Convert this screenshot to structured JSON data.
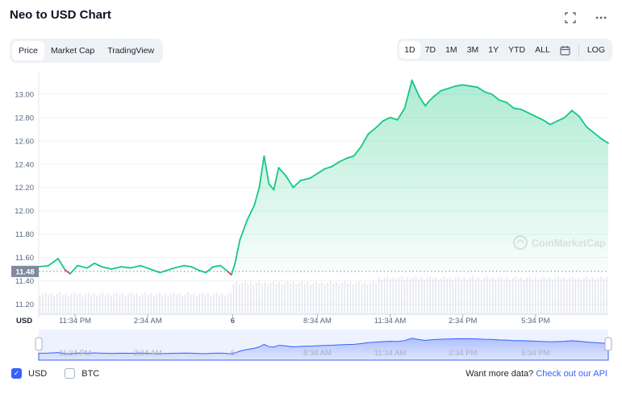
{
  "header": {
    "title": "Neo to USD Chart"
  },
  "type_tabs": [
    {
      "label": "Price",
      "active": true
    },
    {
      "label": "Market Cap",
      "active": false
    },
    {
      "label": "TradingView",
      "active": false
    }
  ],
  "range_tabs": [
    {
      "label": "1D",
      "active": true
    },
    {
      "label": "7D",
      "active": false
    },
    {
      "label": "1M",
      "active": false
    },
    {
      "label": "3M",
      "active": false
    },
    {
      "label": "1Y",
      "active": false
    },
    {
      "label": "YTD",
      "active": false
    },
    {
      "label": "ALL",
      "active": false
    }
  ],
  "log_label": "LOG",
  "watermark": "CoinMarketCap",
  "currency_axis_label": "USD",
  "legend": {
    "usd_label": "USD",
    "btc_label": "BTC"
  },
  "api_note": {
    "text": "Want more data?",
    "link": "Check out our API"
  },
  "colors": {
    "up": "#16c784",
    "down": "#ea3943",
    "navigator": "#3861fb"
  },
  "chart_data": {
    "type": "line",
    "xlabel": "",
    "ylabel": "",
    "ylim": [
      11.12,
      13.2
    ],
    "y_ticks": [
      11.2,
      11.4,
      11.6,
      11.8,
      12.0,
      12.2,
      12.4,
      12.6,
      12.8,
      13.0
    ],
    "y_tick_labels": [
      "11.20",
      "11.40",
      "11.60",
      "11.80",
      "12.00",
      "12.20",
      "12.40",
      "12.60",
      "12.80",
      "13.00"
    ],
    "x_ticks": [
      1.5,
      4.5,
      8,
      11.5,
      14.5,
      17.5,
      20.5
    ],
    "x_tick_labels": [
      "11:34 PM",
      "2:34 AM",
      "6",
      "8:34 AM",
      "11:34 AM",
      "2:34 PM",
      "5:34 PM"
    ],
    "xlim": [
      0,
      23.5
    ],
    "baseline": 11.48,
    "baseline_label": "11.48",
    "series": [
      {
        "x": [
          0,
          0.4,
          0.8,
          1.1,
          1.3,
          1.6,
          2.0,
          2.3,
          2.6,
          3.0,
          3.4,
          3.8,
          4.2,
          4.6,
          5.0,
          5.3,
          5.6,
          6.0,
          6.3,
          6.6,
          6.9,
          7.2,
          7.5,
          7.8,
          7.95,
          8.1,
          8.3,
          8.6,
          8.9,
          9.1,
          9.3,
          9.5,
          9.7,
          9.9,
          10.2,
          10.5,
          10.8,
          11.0,
          11.2,
          11.5,
          11.8,
          12.1,
          12.4,
          12.7,
          13.0,
          13.3,
          13.6,
          13.9,
          14.2,
          14.5,
          14.8,
          15.1,
          15.4,
          15.7,
          15.95,
          16.1,
          16.3,
          16.6,
          16.9,
          17.2,
          17.5,
          17.8,
          18.1,
          18.4,
          18.7,
          19.0,
          19.3,
          19.6,
          19.9,
          20.2,
          20.5,
          20.8,
          21.1,
          21.4,
          21.7,
          22.0,
          22.3,
          22.6,
          22.9,
          23.2,
          23.5
        ],
        "values": [
          11.52,
          11.53,
          11.59,
          11.49,
          11.46,
          11.53,
          11.51,
          11.55,
          11.52,
          11.5,
          11.52,
          11.51,
          11.53,
          11.5,
          11.47,
          11.49,
          11.51,
          11.53,
          11.52,
          11.49,
          11.47,
          11.52,
          11.53,
          11.48,
          11.45,
          11.55,
          11.75,
          11.92,
          12.05,
          12.2,
          12.47,
          12.23,
          12.18,
          12.37,
          12.3,
          12.2,
          12.26,
          12.27,
          12.28,
          12.32,
          12.36,
          12.38,
          12.42,
          12.45,
          12.47,
          12.55,
          12.66,
          12.71,
          12.77,
          12.8,
          12.78,
          12.88,
          13.12,
          12.98,
          12.9,
          12.94,
          12.98,
          13.03,
          13.05,
          13.07,
          13.08,
          13.07,
          13.06,
          13.02,
          13.0,
          12.95,
          12.93,
          12.88,
          12.87,
          12.84,
          12.81,
          12.78,
          12.74,
          12.77,
          12.8,
          12.86,
          12.81,
          12.72,
          12.67,
          12.62,
          12.58
        ]
      }
    ],
    "volume_note": "volume bars shown without scale"
  }
}
